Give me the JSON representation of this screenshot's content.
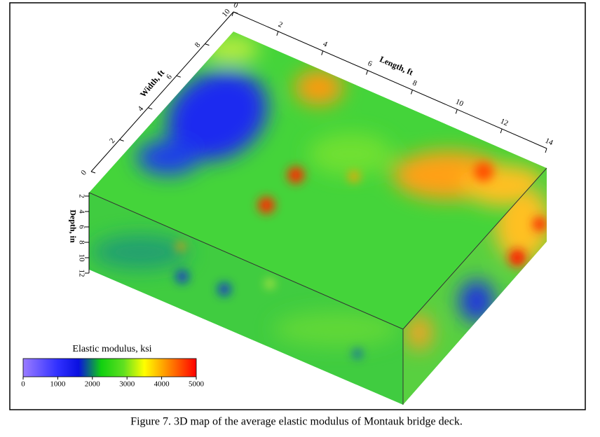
{
  "chart_data": {
    "type": "volume3d",
    "caption": "Figure 7. 3D map of the average elastic modulus of Montauk bridge deck.",
    "xlabel": "Length, ft",
    "xlim": [
      0,
      14
    ],
    "xticks": [
      0,
      2,
      4,
      6,
      8,
      10,
      12,
      14
    ],
    "ylabel": "Width, ft",
    "ylim": [
      0,
      10
    ],
    "yticks": [
      0,
      2,
      4,
      6,
      8,
      10
    ],
    "zlabel": "Depth, in",
    "zlim": [
      2,
      12
    ],
    "zticks": [
      2,
      4,
      6,
      8,
      10,
      12
    ],
    "colorbar": {
      "label": "Elastic modulus, ksi",
      "lim": [
        0,
        5000
      ],
      "ticks": [
        0,
        1000,
        2000,
        3000,
        4000,
        5000
      ]
    }
  }
}
